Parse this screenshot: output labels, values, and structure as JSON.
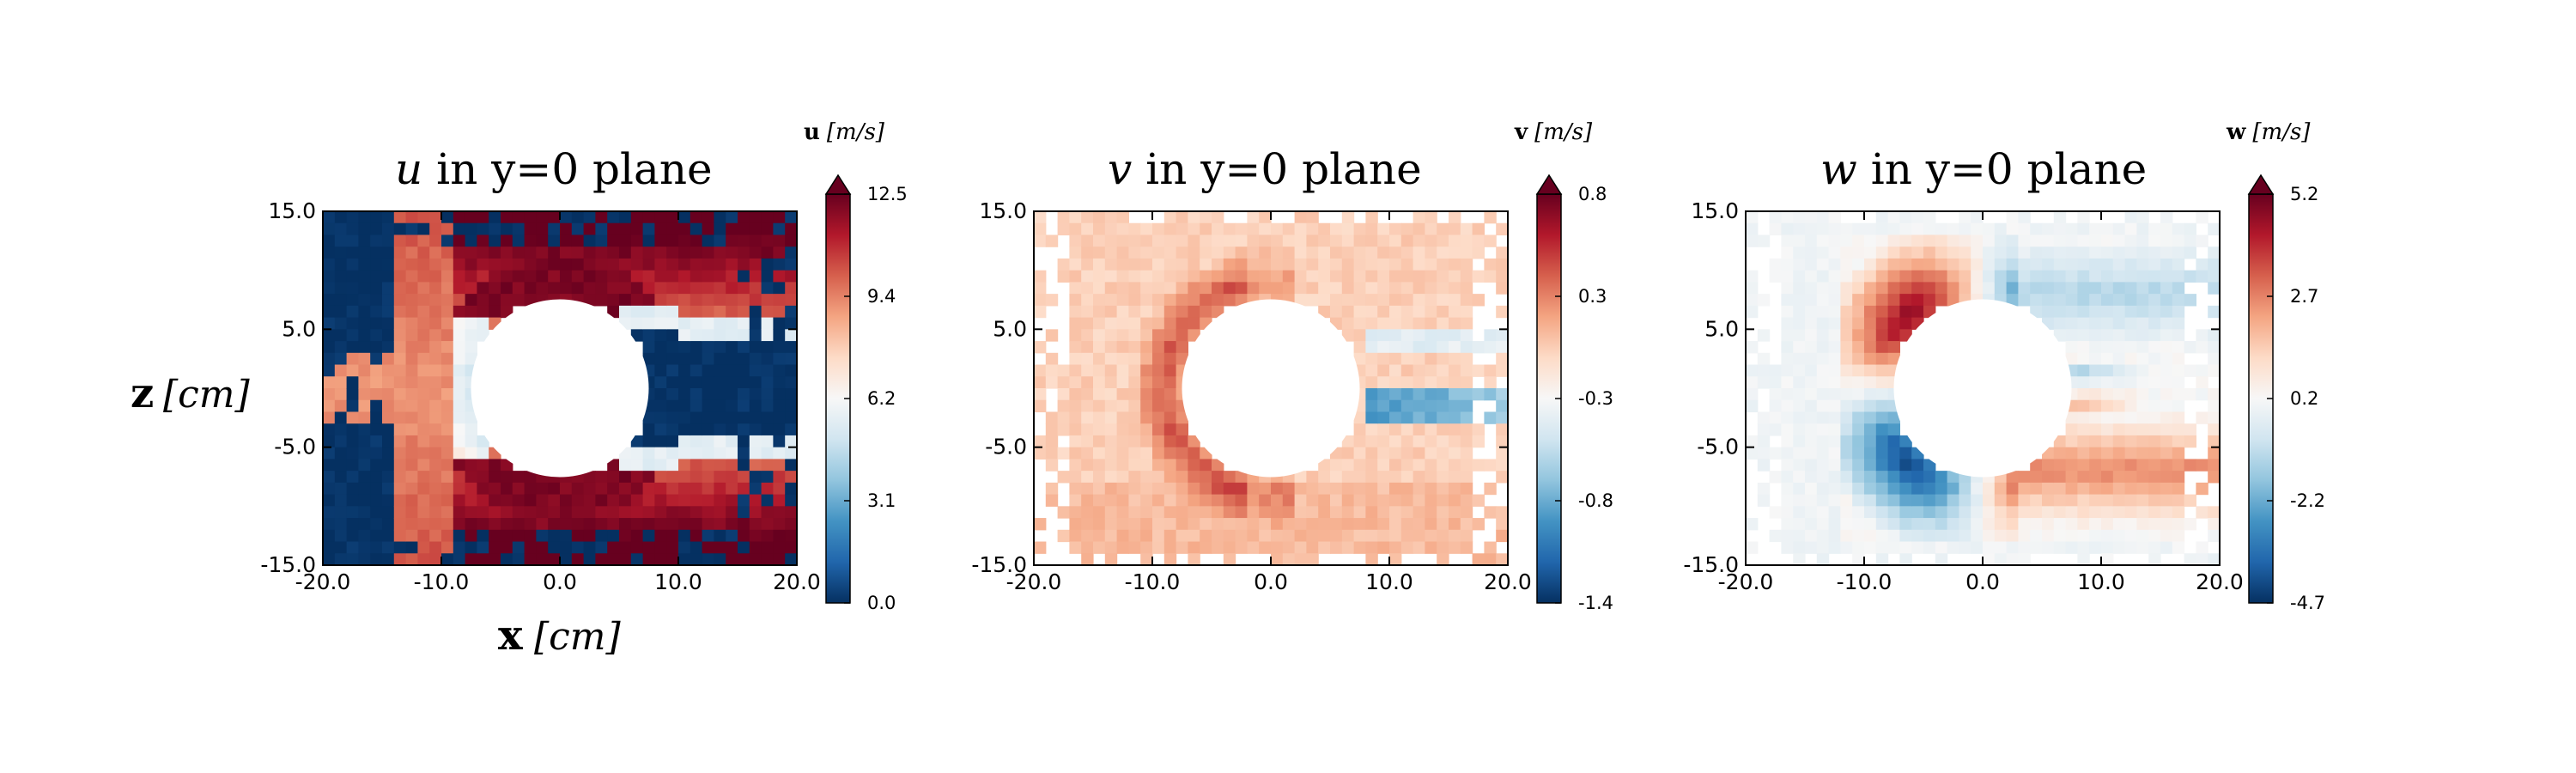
{
  "figure": {
    "ylabel_bold": "z",
    "ylabel_unit": "[cm]",
    "xlabel_bold": "x",
    "xlabel_unit": "[cm]"
  },
  "chart_data": [
    {
      "type": "heatmap",
      "title_var": "u",
      "title_rest": " in y=0 plane",
      "xlim": [
        -20,
        20
      ],
      "ylim": [
        -15,
        15
      ],
      "xticks": [
        "-20.0",
        "-10.0",
        "0.0",
        "10.0",
        "20.0"
      ],
      "yticks": [
        "15.0",
        "5.0",
        "-5.0",
        "-15.0"
      ],
      "cylinder_radius": 7.5,
      "colorbar": {
        "label_bold": "u",
        "label_unit": "[m/s]",
        "ticks": [
          "12.5",
          "9.4",
          "6.2",
          "3.1",
          "0.0"
        ],
        "min": 0.0,
        "max": 12.5,
        "extend": "max"
      },
      "field": "u"
    },
    {
      "type": "heatmap",
      "title_var": "v",
      "title_rest": " in y=0 plane",
      "xlim": [
        -20,
        20
      ],
      "ylim": [
        -15,
        15
      ],
      "xticks": [
        "-20.0",
        "-10.0",
        "0.0",
        "10.0",
        "20.0"
      ],
      "yticks": [
        "15.0",
        "5.0",
        "-5.0",
        "-15.0"
      ],
      "cylinder_radius": 7.5,
      "colorbar": {
        "label_bold": "v",
        "label_unit": "[m/s]",
        "ticks": [
          "0.8",
          "0.3",
          "-0.3",
          "-0.8",
          "-1.4"
        ],
        "min": -1.4,
        "max": 0.8,
        "extend": "max"
      },
      "field": "v"
    },
    {
      "type": "heatmap",
      "title_var": "w",
      "title_rest": " in y=0 plane",
      "xlim": [
        -20,
        20
      ],
      "ylim": [
        -15,
        15
      ],
      "xticks": [
        "-20.0",
        "-10.0",
        "0.0",
        "10.0",
        "20.0"
      ],
      "yticks": [
        "15.0",
        "5.0",
        "-5.0",
        "-15.0"
      ],
      "cylinder_radius": 7.5,
      "colorbar": {
        "label_bold": "w",
        "label_unit": "[m/s]",
        "ticks": [
          "5.2",
          "2.7",
          "0.2",
          "-2.2",
          "-4.7"
        ],
        "min": -4.7,
        "max": 5.2,
        "extend": "max"
      },
      "field": "w"
    }
  ]
}
